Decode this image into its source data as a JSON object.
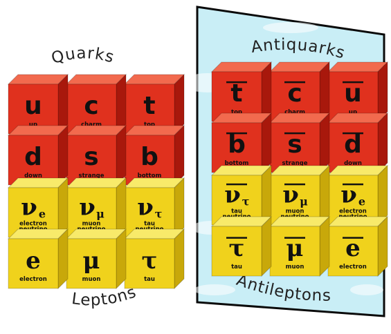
{
  "colors": {
    "quark_face": "#e0311e",
    "quark_top": "#f26a4e",
    "quark_side": "#a8180c",
    "lepton_face": "#f0d21c",
    "lepton_top": "#f8ea6a",
    "lepton_side": "#c8a80a",
    "panel_fill": "#c9eef6",
    "panel_border": "#0a0a0a"
  },
  "matter": {
    "quarks_title": "Quarks",
    "leptons_title": "Leptons",
    "quarks": [
      [
        {
          "symbol": "u",
          "name": "up"
        },
        {
          "symbol": "c",
          "name": "charm"
        },
        {
          "symbol": "t",
          "name": "top"
        }
      ],
      [
        {
          "symbol": "d",
          "name": "down"
        },
        {
          "symbol": "s",
          "name": "strange"
        },
        {
          "symbol": "b",
          "name": "bottom"
        }
      ]
    ],
    "leptons": [
      [
        {
          "symbol": "ν",
          "sub": "e",
          "name": "electron",
          "name2": "neutrino"
        },
        {
          "symbol": "ν",
          "sub": "μ",
          "name": "muon",
          "name2": "neutrino"
        },
        {
          "symbol": "ν",
          "sub": "τ",
          "name": "tau",
          "name2": "neutrino"
        }
      ],
      [
        {
          "symbol": "e",
          "name": "electron"
        },
        {
          "symbol": "μ",
          "name": "muon"
        },
        {
          "symbol": "τ",
          "name": "tau"
        }
      ]
    ]
  },
  "antimatter": {
    "antiquarks_title": "Antiquarks",
    "antileptons_title": "Antileptons",
    "antiquarks": [
      [
        {
          "symbol": "t",
          "name": "top"
        },
        {
          "symbol": "c",
          "name": "charm"
        },
        {
          "symbol": "u",
          "name": "up"
        }
      ],
      [
        {
          "symbol": "b",
          "name": "bottom"
        },
        {
          "symbol": "s",
          "name": "strange"
        },
        {
          "symbol": "d",
          "name": "down"
        }
      ]
    ],
    "antileptons": [
      [
        {
          "symbol": "ν",
          "sub": "τ",
          "name": "tau",
          "name2": "neutrino"
        },
        {
          "symbol": "ν",
          "sub": "μ",
          "name": "muon",
          "name2": "neutrino"
        },
        {
          "symbol": "ν",
          "sub": "e",
          "name": "electron",
          "name2": "neutrino"
        }
      ],
      [
        {
          "symbol": "τ",
          "name": "tau"
        },
        {
          "symbol": "μ",
          "name": "muon"
        },
        {
          "symbol": "e",
          "name": "electron"
        }
      ]
    ]
  }
}
